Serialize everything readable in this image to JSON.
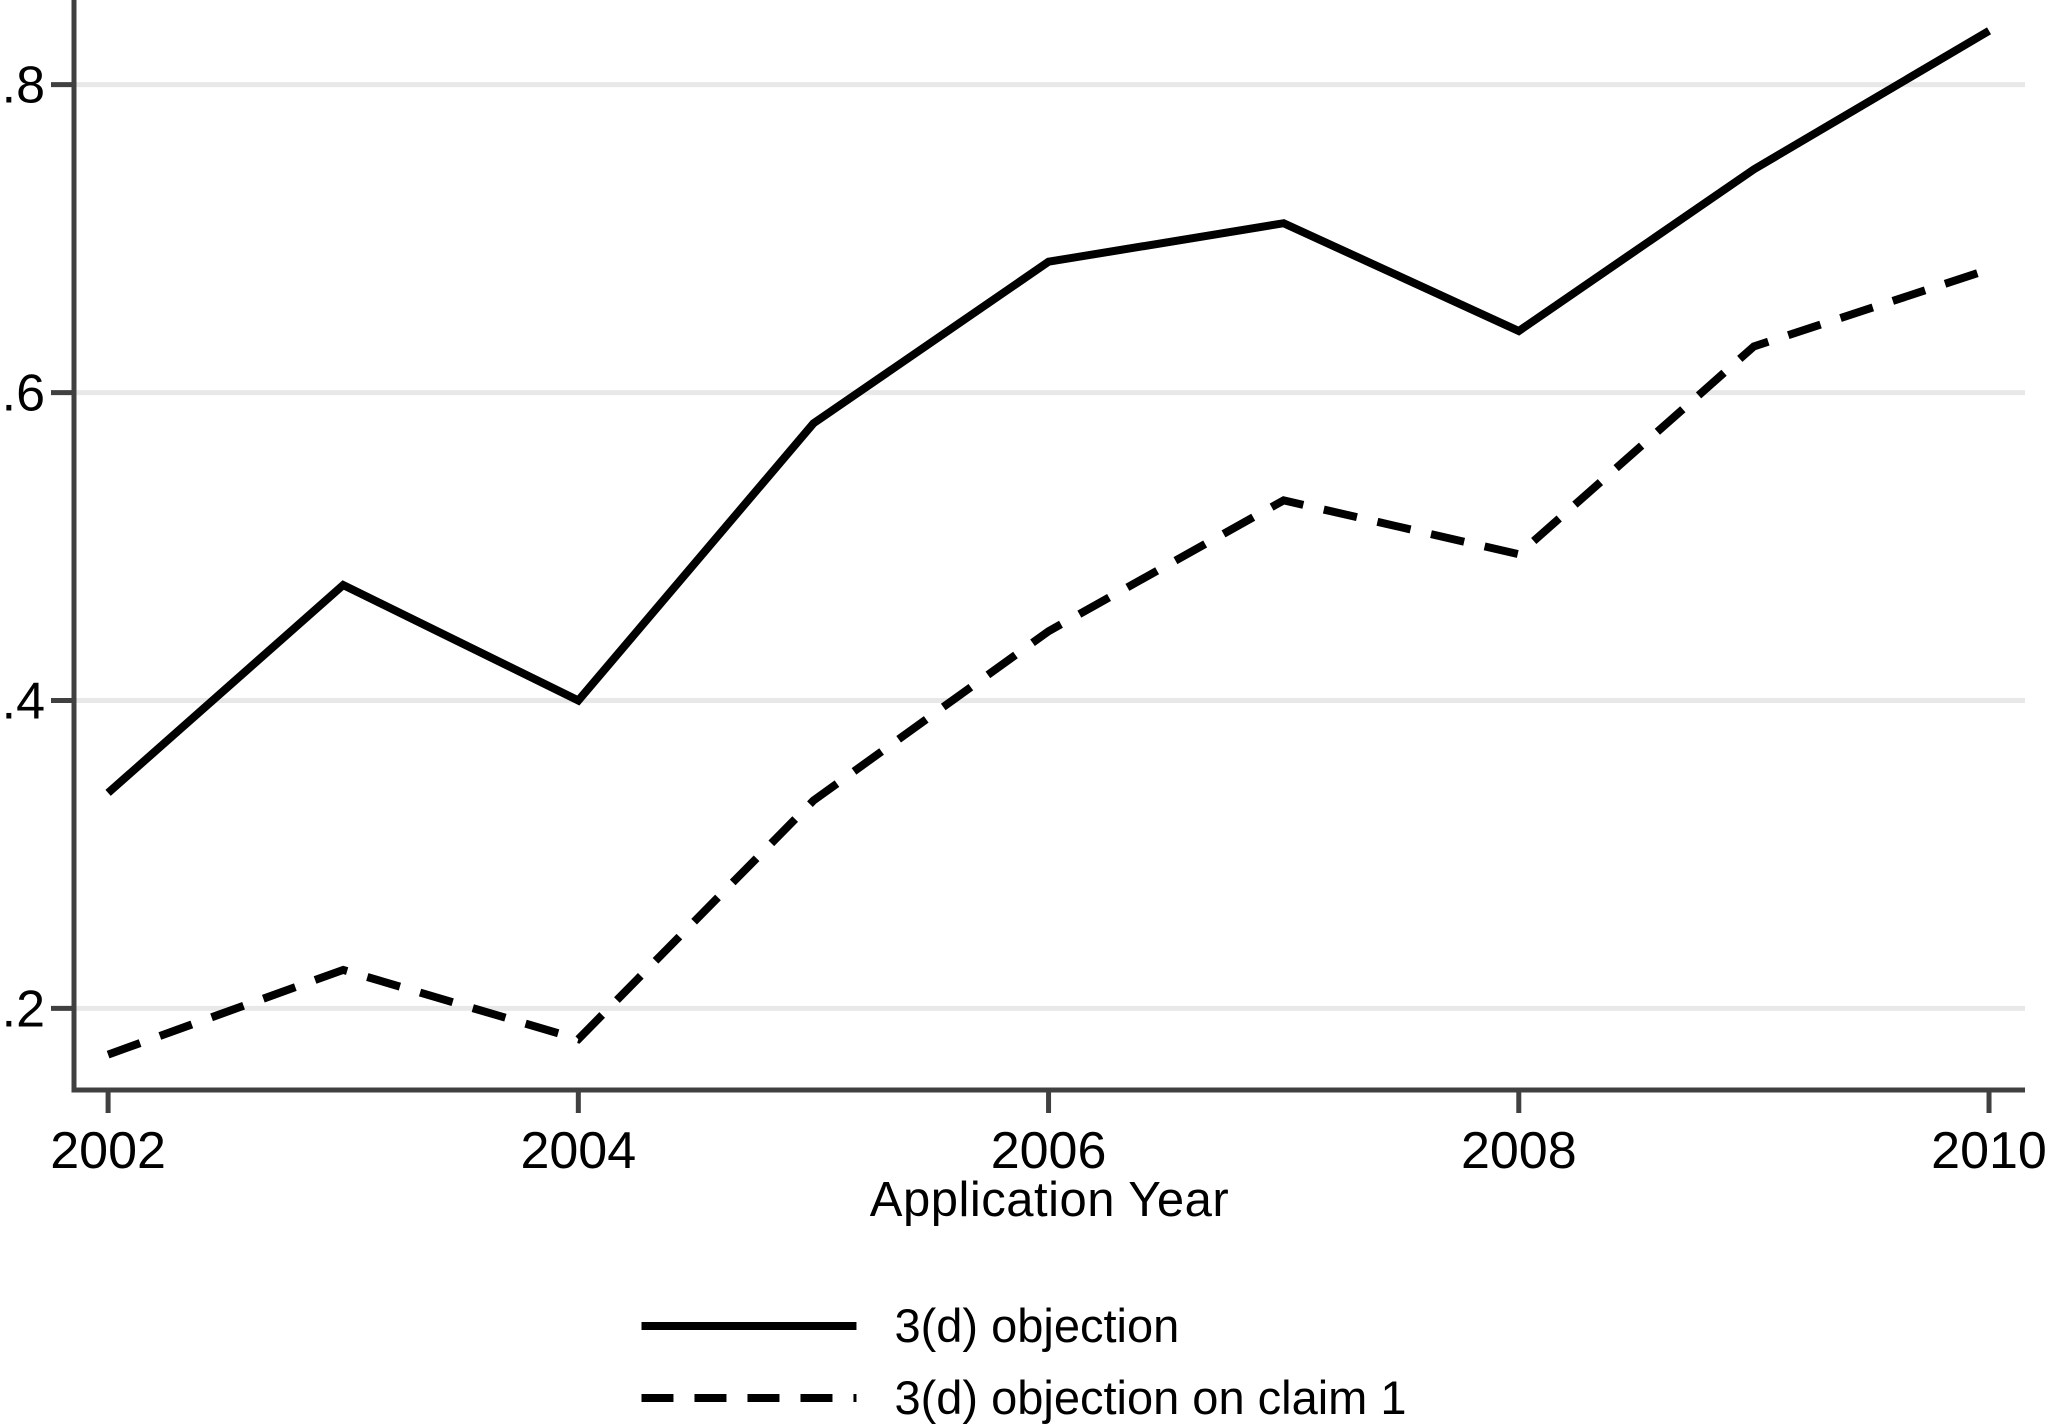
{
  "chart_data": {
    "type": "line",
    "x": [
      2002,
      2003,
      2004,
      2005,
      2006,
      2007,
      2008,
      2009,
      2010
    ],
    "series": [
      {
        "name": "3(d) objection",
        "style": "solid",
        "values": [
          0.34,
          0.475,
          0.4,
          0.58,
          0.685,
          0.71,
          0.64,
          0.745,
          0.835
        ]
      },
      {
        "name": "3(d) objection on claim 1",
        "style": "dashed",
        "values": [
          0.17,
          0.225,
          0.18,
          0.335,
          0.445,
          0.53,
          0.495,
          0.63,
          0.68
        ]
      }
    ],
    "title": "",
    "xlabel": "Application Year",
    "ylabel": "",
    "xticks": [
      {
        "value": 2002,
        "label": "2002"
      },
      {
        "value": 2004,
        "label": "2004"
      },
      {
        "value": 2006,
        "label": "2006"
      },
      {
        "value": 2008,
        "label": "2008"
      },
      {
        "value": 2010,
        "label": "2010"
      }
    ],
    "yticks": [
      {
        "value": 0.2,
        "label": ".2"
      },
      {
        "value": 0.4,
        "label": ".4"
      },
      {
        "value": 0.6,
        "label": ".6"
      },
      {
        "value": 0.8,
        "label": ".8"
      }
    ],
    "xlim": [
      2001.855,
      2010.153
    ],
    "ylim": [
      0.147,
      0.855
    ],
    "grid": "horizontal",
    "legend_position": "bottom",
    "colors": {
      "series": "#000000",
      "axis": "#404040",
      "grid": "#e8e8e8",
      "text": "#000000",
      "background": "#ffffff"
    }
  }
}
